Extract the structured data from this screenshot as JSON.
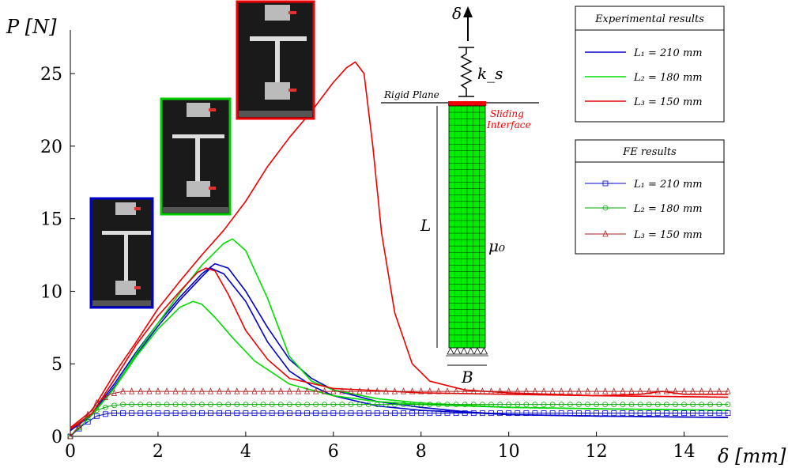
{
  "chart_data": {
    "type": "line",
    "xlabel": "δ [mm]",
    "ylabel": "P [N]",
    "xlim": [
      0,
      15
    ],
    "ylim": [
      0,
      28
    ],
    "xticks": [
      0,
      2,
      4,
      6,
      8,
      10,
      12,
      14
    ],
    "yticks": [
      0,
      5,
      10,
      15,
      20,
      25
    ],
    "grid": false,
    "legends": [
      {
        "title": "Experimental results",
        "placement": "top-right",
        "entries": [
          {
            "label": "L₁ = 210 mm",
            "color": "#0000cc",
            "marker": "none"
          },
          {
            "label": "L₂ = 180 mm",
            "color": "#00dd00",
            "marker": "none"
          },
          {
            "label": "L₃ = 150 mm",
            "color": "#ee0000",
            "marker": "none"
          }
        ]
      },
      {
        "title": "FE results",
        "placement": "right",
        "entries": [
          {
            "label": "L₁ = 210 mm",
            "color": "#0000cc",
            "marker": "square"
          },
          {
            "label": "L₂ = 180 mm",
            "color": "#00aa00",
            "marker": "circle"
          },
          {
            "label": "L₃ = 150 mm",
            "color": "#aa2222",
            "marker": "triangle"
          }
        ]
      }
    ],
    "series": [
      {
        "group": "experimental",
        "color": "#0000cc",
        "x": [
          0,
          0.5,
          1,
          1.5,
          2,
          2.5,
          3,
          3.3,
          3.6,
          4,
          4.5,
          5,
          5.5,
          6,
          7,
          8,
          9,
          10,
          12,
          15
        ],
        "y": [
          0.5,
          1.6,
          3.6,
          5.8,
          7.8,
          9.6,
          11.2,
          11.9,
          11.6,
          10.0,
          7.5,
          5.3,
          4.0,
          3.2,
          2.4,
          2.0,
          1.7,
          1.5,
          1.4,
          1.3
        ]
      },
      {
        "group": "experimental",
        "color": "#0000cc",
        "x": [
          0,
          0.5,
          1,
          1.5,
          2,
          2.5,
          3,
          3.2,
          3.5,
          4,
          4.5,
          5,
          5.5,
          6,
          7,
          8,
          10,
          12,
          15
        ],
        "y": [
          0.4,
          1.5,
          3.4,
          5.6,
          7.6,
          9.4,
          11.0,
          11.6,
          11.2,
          9.3,
          6.5,
          4.5,
          3.5,
          2.8,
          2.1,
          1.8,
          1.5,
          1.4,
          1.3
        ]
      },
      {
        "group": "experimental",
        "color": "#00dd00",
        "x": [
          0,
          0.5,
          1,
          1.5,
          2,
          2.5,
          3,
          3.5,
          3.7,
          4,
          4.5,
          5,
          5.5,
          6,
          7,
          8,
          10,
          12,
          15
        ],
        "y": [
          0.6,
          1.5,
          3.3,
          5.7,
          7.8,
          9.9,
          11.8,
          13.3,
          13.6,
          12.8,
          9.5,
          5.5,
          3.8,
          3.2,
          2.6,
          2.3,
          2.0,
          1.9,
          1.8
        ]
      },
      {
        "group": "experimental",
        "color": "#00dd00",
        "x": [
          0,
          0.5,
          1,
          1.5,
          2,
          2.5,
          2.8,
          3,
          3.3,
          3.7,
          4.2,
          5,
          6,
          7,
          8,
          10,
          12,
          15
        ],
        "y": [
          0.6,
          1.5,
          3.3,
          5.5,
          7.4,
          8.9,
          9.3,
          9.1,
          8.2,
          6.8,
          5.2,
          3.6,
          2.8,
          2.4,
          2.2,
          2.0,
          1.9,
          1.8
        ]
      },
      {
        "group": "experimental",
        "color": "#ee0000",
        "x": [
          0,
          0.5,
          1,
          1.5,
          2,
          2.5,
          3,
          3.5,
          4,
          4.5,
          5,
          5.5,
          6,
          6.3,
          6.5,
          6.7,
          6.9,
          7.1,
          7.4,
          7.8,
          8.2,
          9,
          10,
          11,
          12,
          13,
          13.5,
          14,
          15
        ],
        "y": [
          0.6,
          1.8,
          4.3,
          6.5,
          8.8,
          10.7,
          12.5,
          14.2,
          16.2,
          18.6,
          20.6,
          22.4,
          24.4,
          25.4,
          25.8,
          25.0,
          20.0,
          14.0,
          8.5,
          5.0,
          3.8,
          3.2,
          3.0,
          2.9,
          2.8,
          2.9,
          3.1,
          2.9,
          2.9
        ]
      },
      {
        "group": "experimental",
        "color": "#ee0000",
        "x": [
          0,
          0.5,
          1,
          1.5,
          2,
          2.5,
          2.9,
          3.1,
          3.3,
          3.6,
          4,
          4.5,
          5,
          6,
          8,
          10,
          12,
          15
        ],
        "y": [
          0.5,
          1.6,
          3.9,
          6.3,
          8.3,
          10.0,
          11.3,
          11.6,
          11.4,
          9.8,
          7.3,
          5.3,
          4.0,
          3.3,
          3.0,
          2.9,
          2.8,
          2.7
        ]
      },
      {
        "group": "fe",
        "color": "#0000cc",
        "marker": "square",
        "x": [
          0,
          0.3,
          0.6,
          0.9,
          1.2,
          2,
          4,
          6,
          8,
          10,
          12,
          15
        ],
        "y": [
          0,
          0.8,
          1.4,
          1.6,
          1.6,
          1.6,
          1.6,
          1.6,
          1.6,
          1.6,
          1.6,
          1.6
        ]
      },
      {
        "group": "fe",
        "color": "#00aa00",
        "marker": "circle",
        "x": [
          0,
          0.3,
          0.6,
          0.9,
          1.2,
          2,
          4,
          6,
          8,
          10,
          12,
          15
        ],
        "y": [
          0,
          0.9,
          1.8,
          2.1,
          2.2,
          2.2,
          2.2,
          2.2,
          2.2,
          2.2,
          2.2,
          2.2
        ]
      },
      {
        "group": "fe",
        "color": "#aa2222",
        "marker": "triangle",
        "x": [
          0,
          0.3,
          0.6,
          0.9,
          1.2,
          2,
          4,
          6,
          8,
          10,
          12,
          15
        ],
        "y": [
          0,
          1.1,
          2.3,
          2.9,
          3.1,
          3.1,
          3.1,
          3.1,
          3.1,
          3.1,
          3.1,
          3.1
        ]
      }
    ],
    "schematic": {
      "delta_label": "δ",
      "spring_label": "k_s",
      "rigid_plane_label": "Rigid Plane",
      "sliding_label_1": "Sliding",
      "sliding_label_2": "Interface",
      "length_label": "L",
      "friction_label": "μ₀",
      "width_label": "B",
      "mesh_color": "#00ee00",
      "interface_color": "#ee0000"
    },
    "photos": [
      {
        "frame_color": "#0000cc"
      },
      {
        "frame_color": "#00cc00"
      },
      {
        "frame_color": "#ee0000"
      }
    ]
  }
}
